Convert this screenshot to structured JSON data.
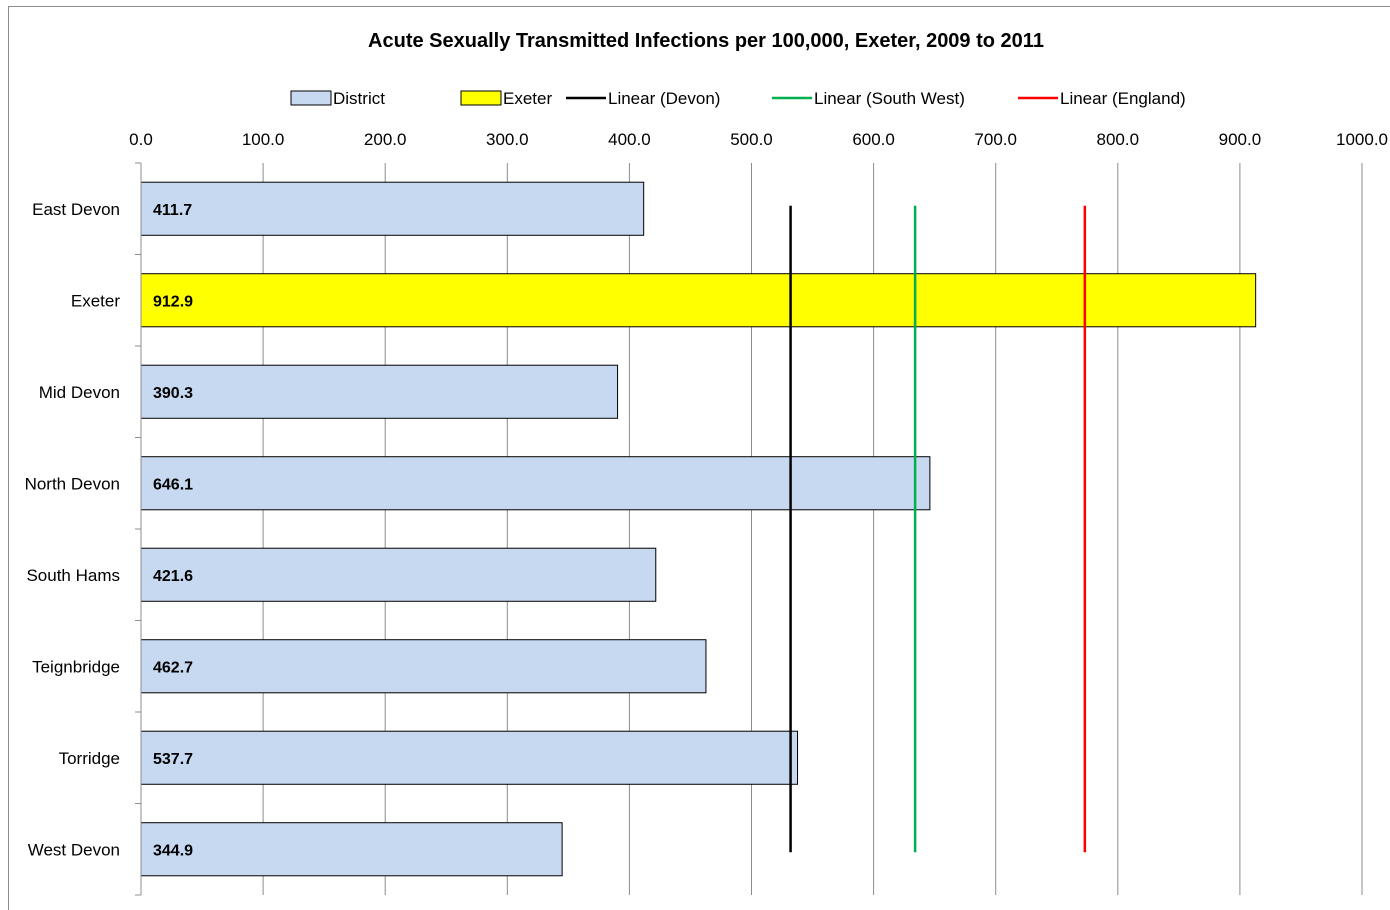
{
  "chart_data": {
    "type": "bar",
    "orientation": "horizontal",
    "title": "Acute Sexually Transmitted Infections per 100,000, Exeter, 2009 to 2011",
    "categories": [
      "East Devon",
      "Exeter",
      "Mid Devon",
      "North Devon",
      "South Hams",
      "Teignbridge",
      "Torridge",
      "West Devon"
    ],
    "values": [
      411.7,
      912.9,
      390.3,
      646.1,
      421.6,
      462.7,
      537.7,
      344.9
    ],
    "data_labels": [
      "411.7",
      "912.9",
      "390.3",
      "646.1",
      "421.6",
      "462.7",
      "537.7",
      "344.9"
    ],
    "highlight_category": "Exeter",
    "xlim": [
      0,
      1000
    ],
    "x_ticks": [
      0,
      100,
      200,
      300,
      400,
      500,
      600,
      700,
      800,
      900,
      1000
    ],
    "x_tick_labels": [
      "0.0",
      "100.0",
      "200.0",
      "300.0",
      "400.0",
      "500.0",
      "600.0",
      "700.0",
      "800.0",
      "900.0",
      "1000.0"
    ],
    "x_axis_position": "top",
    "grid": "vertical",
    "legend_position": "top",
    "legend": [
      {
        "label": "District",
        "kind": "box",
        "color": "#c6d9f1"
      },
      {
        "label": "Exeter",
        "kind": "box",
        "color": "#ffff00"
      },
      {
        "label": "Linear (Devon)",
        "kind": "line",
        "color": "#000000"
      },
      {
        "label": "Linear (South West)",
        "kind": "line",
        "color": "#00b050"
      },
      {
        "label": "Linear (England)",
        "kind": "line",
        "color": "#ff0000"
      }
    ],
    "reference_lines": [
      {
        "name": "Linear (Devon)",
        "value": 532,
        "color": "#000000"
      },
      {
        "name": "Linear (South West)",
        "value": 634,
        "color": "#00b050"
      },
      {
        "name": "Linear (England)",
        "value": 773,
        "color": "#ff0000"
      }
    ],
    "colors": {
      "district": "#c6d9f1",
      "exeter": "#ffff00",
      "gridline": "#8c8c8c",
      "bar_border": "#000000"
    }
  }
}
